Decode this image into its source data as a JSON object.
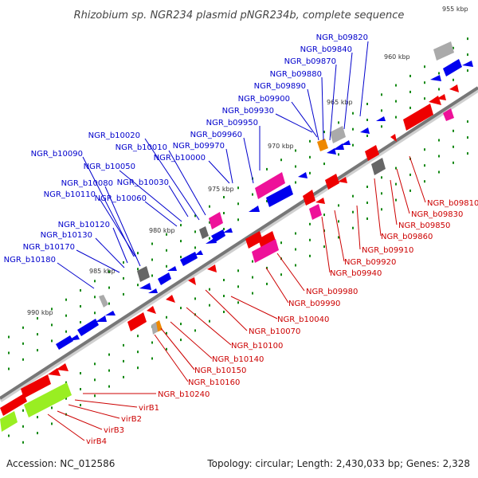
{
  "title": "Rhizobium sp. NGR234 plasmid pNGR234b, complete sequence",
  "footer": {
    "accession": "Accession: NC_012586",
    "stats": "Topology: circular; Length: 2,430,033 bp; Genes: 2,328"
  },
  "colors": {
    "forward_gene": "#0000ee",
    "reverse_gene": "#ee0000",
    "pink_gene": "#ee1199",
    "gray_gene": "#666666",
    "light_gene": "#aaaaaa",
    "orange_gene": "#ee8800",
    "lime_gene": "#99ee22",
    "label_forward": "#0000cc",
    "label_reverse": "#cc0000",
    "backbone": "#777777",
    "tick": "#118811"
  },
  "scale_labels": [
    "955 kbp",
    "960 kbp",
    "965 kbp",
    "970 kbp",
    "975 kbp",
    "980 kbp",
    "985 kbp",
    "990 kbp"
  ],
  "forward_labels": [
    "NGR_b09820",
    "NGR_b09840",
    "NGR_b09870",
    "NGR_b09880",
    "NGR_b09890",
    "NGR_b09900",
    "NGR_b09930",
    "NGR_b09950",
    "NGR_b09960",
    "NGR_b09970",
    "NGR_b10000",
    "NGR_b10010",
    "NGR_b10020",
    "NGR_b10030",
    "NGR_b10050",
    "NGR_b10060",
    "NGR_b10080",
    "NGR_b10090",
    "NGR_b10110",
    "NGR_b10120",
    "NGR_b10130",
    "NGR_b10170",
    "NGR_b10180"
  ],
  "reverse_labels": [
    "NGR_b09810",
    "NGR_b09830",
    "NGR_b09850",
    "NGR_b09860",
    "NGR_b09910",
    "NGR_b09920",
    "NGR_b09940",
    "NGR_b09980",
    "NGR_b09990",
    "NGR_b10040",
    "NGR_b10070",
    "NGR_b10100",
    "NGR_b10140",
    "NGR_b10150",
    "NGR_b10160",
    "NGR_b10240",
    "virB1",
    "virB2",
    "virB3",
    "virB4"
  ]
}
